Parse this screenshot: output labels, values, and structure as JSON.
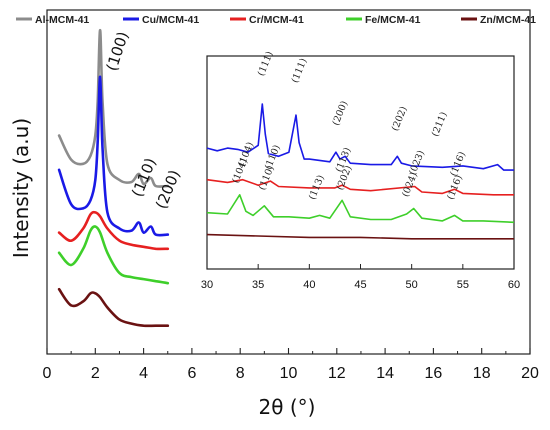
{
  "chart_data": [
    {
      "type": "line",
      "xlabel": "2θ (°)",
      "ylabel": "Intensity (a.u)",
      "xlim": [
        0,
        20
      ],
      "xticks": [
        "0",
        "2",
        "4",
        "6",
        "8",
        "10",
        "12",
        "14",
        "16",
        "18",
        "20"
      ],
      "legend_position": "top",
      "series": [
        {
          "name": "Al-MCM-41",
          "color": "#8c8c8c",
          "x": [
            0.5,
            1.0,
            1.5,
            1.8,
            2.0,
            2.1,
            2.2,
            2.3,
            2.5,
            3.0,
            3.5,
            3.8,
            4.0,
            4.3,
            4.5,
            5.0
          ],
          "y": [
            0.78,
            0.66,
            0.64,
            0.68,
            0.78,
            0.95,
            1.3,
            0.95,
            0.64,
            0.56,
            0.55,
            0.59,
            0.54,
            0.57,
            0.53,
            0.53
          ]
        },
        {
          "name": "Cu/MCM-41",
          "color": "#1a1ae6",
          "x": [
            0.5,
            1.0,
            1.5,
            1.8,
            2.0,
            2.1,
            2.2,
            2.3,
            2.5,
            3.0,
            3.5,
            3.8,
            4.0,
            4.3,
            4.5,
            5.0
          ],
          "y": [
            0.61,
            0.44,
            0.42,
            0.46,
            0.56,
            0.75,
            1.07,
            0.72,
            0.4,
            0.32,
            0.31,
            0.35,
            0.3,
            0.33,
            0.29,
            0.29
          ]
        },
        {
          "name": "Cr/MCM-41",
          "color": "#e62020",
          "x": [
            0.5,
            1.0,
            1.5,
            1.8,
            2.0,
            2.2,
            2.5,
            3.0,
            3.5,
            4.0,
            4.5,
            5.0
          ],
          "y": [
            0.3,
            0.26,
            0.32,
            0.39,
            0.4,
            0.38,
            0.32,
            0.26,
            0.24,
            0.23,
            0.22,
            0.22
          ]
        },
        {
          "name": "Fe/MCM-41",
          "color": "#3ecf2a",
          "x": [
            0.5,
            1.0,
            1.5,
            1.8,
            2.0,
            2.2,
            2.5,
            3.0,
            3.5,
            4.0,
            4.5,
            5.0
          ],
          "y": [
            0.2,
            0.14,
            0.22,
            0.31,
            0.33,
            0.3,
            0.2,
            0.1,
            0.08,
            0.07,
            0.06,
            0.05
          ]
        },
        {
          "name": "Zn/MCM-41",
          "color": "#6a1212",
          "x": [
            0.5,
            1.0,
            1.5,
            1.8,
            2.0,
            2.2,
            2.5,
            3.0,
            3.5,
            4.0,
            4.5,
            5.0
          ],
          "y": [
            0.02,
            -0.06,
            -0.04,
            0.0,
            0.0,
            -0.02,
            -0.07,
            -0.13,
            -0.15,
            -0.16,
            -0.16,
            -0.16
          ]
        }
      ],
      "annotations": [
        "(100)",
        "(110)",
        "(200)"
      ]
    },
    {
      "type": "line",
      "xlim": [
        30,
        60
      ],
      "xticks": [
        "30",
        "35",
        "40",
        "45",
        "50",
        "55",
        "60"
      ],
      "series": [
        {
          "name": "Cu/MCM-41",
          "color": "#1a1ae6",
          "x": [
            30,
            31,
            32,
            33,
            34,
            35,
            35.4,
            35.7,
            36,
            37,
            38,
            38.7,
            39,
            39.5,
            40,
            42,
            42.6,
            43,
            43.5,
            44,
            46,
            48,
            48.6,
            49,
            50,
            53,
            55,
            57,
            58.4,
            59,
            60
          ],
          "y": [
            0.58,
            0.56,
            0.58,
            0.57,
            0.55,
            0.6,
            0.9,
            0.68,
            0.54,
            0.52,
            0.55,
            0.82,
            0.62,
            0.5,
            0.5,
            0.48,
            0.55,
            0.5,
            0.52,
            0.47,
            0.46,
            0.46,
            0.52,
            0.47,
            0.45,
            0.44,
            0.45,
            0.43,
            0.46,
            0.42,
            0.42
          ]
        },
        {
          "name": "Cr/MCM-41",
          "color": "#e62020",
          "x": [
            30,
            32,
            33.5,
            35,
            36.2,
            37,
            40,
            42.5,
            43.2,
            44,
            46,
            50.3,
            51,
            53,
            54.2,
            55,
            58,
            60
          ],
          "y": [
            0.35,
            0.33,
            0.35,
            0.31,
            0.34,
            0.3,
            0.29,
            0.29,
            0.31,
            0.28,
            0.27,
            0.3,
            0.26,
            0.25,
            0.28,
            0.25,
            0.24,
            0.24
          ]
        },
        {
          "name": "Fe/MCM-41",
          "color": "#3ecf2a",
          "x": [
            30,
            32,
            33.2,
            33.8,
            34.5,
            35.6,
            36.5,
            38,
            40,
            41,
            42,
            43.2,
            44,
            46,
            48,
            49.5,
            50.2,
            51,
            53,
            54.2,
            55,
            57,
            60
          ],
          "y": [
            0.11,
            0.1,
            0.24,
            0.12,
            0.09,
            0.16,
            0.08,
            0.08,
            0.07,
            0.09,
            0.07,
            0.2,
            0.08,
            0.06,
            0.06,
            0.1,
            0.14,
            0.07,
            0.05,
            0.09,
            0.05,
            0.05,
            0.04
          ]
        },
        {
          "name": "Zn/MCM-41",
          "color": "#6a1212",
          "x": [
            30,
            35,
            40,
            45,
            50,
            55,
            60
          ],
          "y": [
            -0.05,
            -0.06,
            -0.07,
            -0.07,
            -0.08,
            -0.08,
            -0.08
          ]
        }
      ],
      "annotations": [
        "(111)",
        "(111)",
        "(200)",
        "(202)",
        "(211)",
        "(104)",
        "(110)",
        "(113)",
        "(023)",
        "(116)",
        "(104)",
        "(110)",
        "(113)",
        "(202)",
        "(024)",
        "(116)"
      ]
    }
  ]
}
